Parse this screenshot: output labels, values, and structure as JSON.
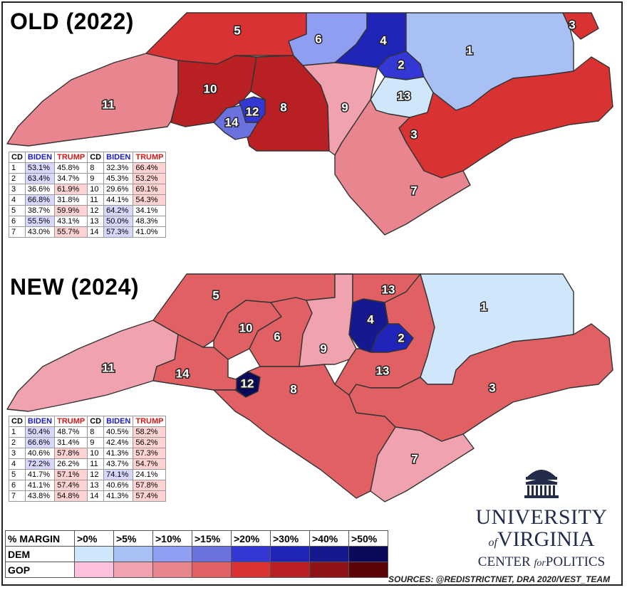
{
  "titles": {
    "old": "OLD (2022)",
    "new": "NEW (2024)"
  },
  "table_headers": {
    "cd": "CD",
    "biden": "BIDEN",
    "trump": "TRUMP"
  },
  "old_results": [
    {
      "cd": "1",
      "biden": "53.1%",
      "trump": "45.8%",
      "winner": "d"
    },
    {
      "cd": "2",
      "biden": "63.4%",
      "trump": "34.7%",
      "winner": "d"
    },
    {
      "cd": "3",
      "biden": "36.6%",
      "trump": "61.9%",
      "winner": "r"
    },
    {
      "cd": "4",
      "biden": "66.8%",
      "trump": "31.8%",
      "winner": "d"
    },
    {
      "cd": "5",
      "biden": "38.7%",
      "trump": "59.9%",
      "winner": "r"
    },
    {
      "cd": "6",
      "biden": "55.5%",
      "trump": "43.1%",
      "winner": "d"
    },
    {
      "cd": "7",
      "biden": "43.0%",
      "trump": "55.7%",
      "winner": "r"
    },
    {
      "cd": "8",
      "biden": "32.3%",
      "trump": "66.4%",
      "winner": "r"
    },
    {
      "cd": "9",
      "biden": "45.3%",
      "trump": "53.2%",
      "winner": "r"
    },
    {
      "cd": "10",
      "biden": "29.6%",
      "trump": "69.1%",
      "winner": "r"
    },
    {
      "cd": "11",
      "biden": "44.1%",
      "trump": "54.3%",
      "winner": "r"
    },
    {
      "cd": "12",
      "biden": "64.2%",
      "trump": "34.1%",
      "winner": "d"
    },
    {
      "cd": "13",
      "biden": "50.0%",
      "trump": "48.3%",
      "winner": "d"
    },
    {
      "cd": "14",
      "biden": "57.3%",
      "trump": "41.0%",
      "winner": "d"
    }
  ],
  "new_results": [
    {
      "cd": "1",
      "biden": "50.4%",
      "trump": "48.7%",
      "winner": "d"
    },
    {
      "cd": "2",
      "biden": "66.6%",
      "trump": "31.4%",
      "winner": "d"
    },
    {
      "cd": "3",
      "biden": "40.6%",
      "trump": "57.8%",
      "winner": "r"
    },
    {
      "cd": "4",
      "biden": "72.2%",
      "trump": "26.2%",
      "winner": "d"
    },
    {
      "cd": "5",
      "biden": "41.7%",
      "trump": "57.1%",
      "winner": "r"
    },
    {
      "cd": "6",
      "biden": "41.1%",
      "trump": "57.4%",
      "winner": "r"
    },
    {
      "cd": "7",
      "biden": "43.8%",
      "trump": "54.8%",
      "winner": "r"
    },
    {
      "cd": "8",
      "biden": "40.5%",
      "trump": "58.2%",
      "winner": "r"
    },
    {
      "cd": "9",
      "biden": "42.4%",
      "trump": "56.2%",
      "winner": "r"
    },
    {
      "cd": "10",
      "biden": "41.3%",
      "trump": "57.3%",
      "winner": "r"
    },
    {
      "cd": "11",
      "biden": "43.7%",
      "trump": "54.7%",
      "winner": "r"
    },
    {
      "cd": "12",
      "biden": "74.1%",
      "trump": "24.1%",
      "winner": "d"
    },
    {
      "cd": "13",
      "biden": "40.6%",
      "trump": "57.8%",
      "winner": "r"
    },
    {
      "cd": "14",
      "biden": "41.3%",
      "trump": "57.4%",
      "winner": "r"
    }
  ],
  "legend": {
    "header": "% MARGIN",
    "bins": [
      ">0%",
      ">5%",
      ">10%",
      ">15%",
      ">20%",
      ">30%",
      ">40%",
      ">50%"
    ],
    "rows": [
      {
        "label": "DEM",
        "colors": [
          "#cfe6fb",
          "#a9c0f5",
          "#8f9ef0",
          "#6b72e0",
          "#3338d4",
          "#2024b8",
          "#16188f",
          "#0a0a5c"
        ]
      },
      {
        "label": "GOP",
        "colors": [
          "#fbc1dc",
          "#f0a2ae",
          "#e8858f",
          "#e06064",
          "#d83232",
          "#b82024",
          "#8e1418",
          "#5c0508"
        ]
      }
    ]
  },
  "branding": {
    "line1": "UNIVERSITY",
    "of": "of",
    "line2": "VIRGINIA",
    "line3a": "CENTER",
    "for": "for",
    "line3b": "POLITICS"
  },
  "sources": "SOURCES: @REDISTRICTNET, DRA 2020/VEST_TEAM",
  "map_labels": {
    "old": [
      "5",
      "3",
      "6",
      "4",
      "1",
      "2",
      "10",
      "11",
      "8",
      "12",
      "9",
      "13",
      "14",
      "3",
      "7"
    ],
    "new": [
      "5",
      "13",
      "1",
      "4",
      "10",
      "6",
      "2",
      "9",
      "11",
      "14",
      "13",
      "12",
      "8",
      "3",
      "7"
    ]
  },
  "colors": {
    "old": {
      "1": "#a9c0f5",
      "2": "#3338d4",
      "3a": "#d83232",
      "3b": "#d83232",
      "4": "#2024b8",
      "5": "#d83232",
      "6": "#8f9ef0",
      "7": "#e8858f",
      "8": "#b82024",
      "9": "#f0a2ae",
      "10": "#b82024",
      "11": "#e8858f",
      "12": "#3338d4",
      "13": "#cfe6fb",
      "14": "#6b72e0"
    },
    "new": {
      "1": "#cfe6fb",
      "2": "#2024b8",
      "3": "#e06064",
      "4": "#16188f",
      "5": "#e06064",
      "6": "#e06064",
      "7": "#f0a2ae",
      "8": "#e06064",
      "9": "#f0a2ae",
      "10": "#e06064",
      "11": "#f0a2ae",
      "12": "#0a0a5c",
      "13": "#e06064",
      "13b": "#e06064",
      "14": "#e06064"
    }
  }
}
